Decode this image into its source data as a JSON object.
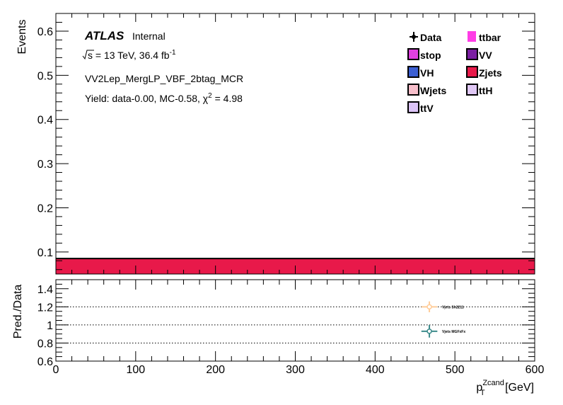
{
  "chart_data": [
    {
      "type": "bar",
      "panel": "main",
      "ylabel": "Events",
      "xlim": [
        0,
        600
      ],
      "ylim": [
        0.05,
        0.64
      ],
      "yticks": [
        0.1,
        0.2,
        0.3,
        0.4,
        0.5,
        0.6
      ],
      "ytick_labels": [
        "0.1",
        "0.2",
        "0.3",
        "0.4",
        "0.5",
        "0.6"
      ],
      "series": [
        {
          "name": "Zjets",
          "x_range": [
            0,
            600
          ],
          "value": 0.085,
          "color": "#e8194a"
        }
      ],
      "annotations": {
        "atlas": "ATLAS",
        "internal": "Internal",
        "energy_pre": "s",
        "energy_post": " = 13 TeV, 36.4 fb",
        "energy_sup": "-1",
        "region": "VV2Lep_MergLP_VBF_2btag_MCR",
        "yield_pre": "Yield: data-0.00, MC-0.58, χ",
        "yield_sup": "2",
        "yield_post": " = 4.98"
      },
      "legend": {
        "placement": "top-right",
        "entries": [
          {
            "name": "Data",
            "marker": "data"
          },
          {
            "name": "ttbar",
            "color": "#ff3ce6"
          },
          {
            "name": "stop",
            "color": "#e040e0"
          },
          {
            "name": "VV",
            "color": "#7b1fa2"
          },
          {
            "name": "VH",
            "color": "#3c5fd2"
          },
          {
            "name": "Zjets",
            "color": "#e8194a"
          },
          {
            "name": "Wjets",
            "color": "#f7bfcb"
          },
          {
            "name": "ttH",
            "color": "#e0c8f5"
          },
          {
            "name": "ttV",
            "color": "#dcc4f7"
          }
        ]
      }
    },
    {
      "type": "scatter",
      "panel": "ratio",
      "ylabel": "Pred./Data",
      "xlabel_main": "p",
      "xlabel_sub": "T",
      "xlabel_sup": "Zcand",
      "xlabel_unit": " [GeV]",
      "xlim": [
        0,
        600
      ],
      "ylim": [
        0.6,
        1.5
      ],
      "yticks": [
        0.6,
        0.8,
        1.0,
        1.2,
        1.4
      ],
      "ytick_labels": [
        "0.6",
        "0.8",
        "1",
        "1.2",
        "1.4"
      ],
      "xticks": [
        0,
        100,
        200,
        300,
        400,
        500,
        600
      ],
      "xtick_labels": [
        "0",
        "100",
        "200",
        "300",
        "400",
        "500",
        "600"
      ],
      "reference_lines": [
        0.8,
        1.0,
        1.2
      ],
      "points": [
        {
          "name": "Vjets Sh2211",
          "x": 468,
          "y": 1.2,
          "yerr": 0.06,
          "xerr": 10,
          "color": "#ffcc99"
        },
        {
          "name": "Vjets MGFxFx",
          "x": 468,
          "y": 0.93,
          "yerr": 0.07,
          "xerr": 10,
          "color": "#3c8b8b"
        }
      ]
    }
  ]
}
